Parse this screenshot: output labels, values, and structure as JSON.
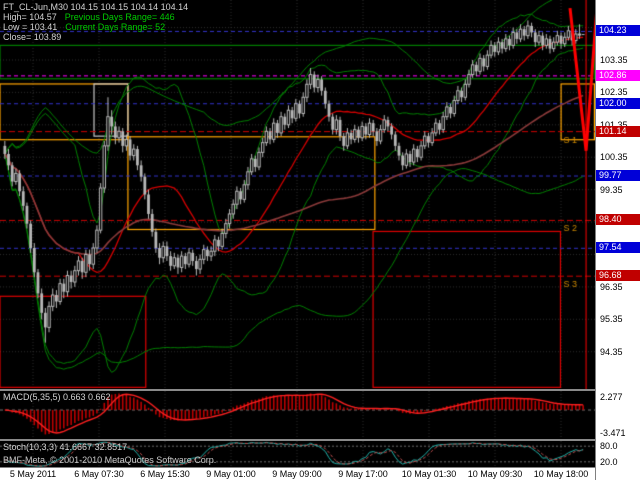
{
  "header": {
    "symbol_line": "FT_CL-Jun,M30 104.15 104.15 104.14 104.14",
    "high_line": "High= 104.57",
    "prev_range": "Previous Days Range= 446",
    "low_line": "Low = 103.41",
    "curr_range": "Current Days Range= 52",
    "close_line": "Close= 103.89"
  },
  "footer": {
    "copyright": "BMF-Meta, © 2001-2010 MetaQuotes Software Corp."
  },
  "colors": {
    "background": "#000000",
    "axis_bg": "#FFFFFF",
    "grid": "#2E2E2E",
    "candle": "#B8B8B8",
    "bollinger": "#008000",
    "ma_fast": "#D40000",
    "ma_slow": "#8B3A3A",
    "zone_green": "#008000",
    "zone_orange": "#FFA500",
    "zone_red": "#E00000",
    "zone_white": "#C8C8C8",
    "pivot_red": "#D00000",
    "blue_level": "#3333CC",
    "magenta_level": "#FF00FF",
    "macd_hist": "#C00000",
    "macd_signal": "#FF2020",
    "stoch_k": "#20B2AA",
    "stoch_d": "#C05050",
    "level_line": "#707070",
    "spike": "#FF0000",
    "pivot_label": "#CC8800",
    "badge_blue": "#0000D8",
    "badge_magenta": "#FF00FF",
    "badge_red": "#C00000"
  },
  "price_axis": {
    "ticks": [
      {
        "label": "103.35",
        "price": 103.35
      },
      {
        "label": "102.35",
        "price": 102.35
      },
      {
        "label": "101.35",
        "price": 101.35
      },
      {
        "label": "100.35",
        "price": 100.35
      },
      {
        "label": "99.35",
        "price": 99.35
      },
      {
        "label": "96.35",
        "price": 96.35
      },
      {
        "label": "95.35",
        "price": 95.35
      },
      {
        "label": "94.35",
        "price": 94.35
      }
    ],
    "badges": [
      {
        "label": "104.23",
        "price": 104.23,
        "color": "#0000D8"
      },
      {
        "label": "102.86",
        "price": 102.86,
        "color": "#FF00FF"
      },
      {
        "label": "102.00",
        "price": 102.0,
        "color": "#0000D8"
      },
      {
        "label": "101.14",
        "price": 101.14,
        "color": "#C00000"
      },
      {
        "label": "99.77",
        "price": 99.77,
        "color": "#0000D8"
      },
      {
        "label": "98.40",
        "price": 98.4,
        "color": "#C00000"
      },
      {
        "label": "97.54",
        "price": 97.54,
        "color": "#0000D8"
      },
      {
        "label": "96.68",
        "price": 96.68,
        "color": "#C00000"
      }
    ]
  },
  "indicators": {
    "macd": {
      "label": "MACD(5,35,5) 0.663 0.662",
      "fast": 5,
      "slow": 35,
      "signal": 5,
      "axis_max": "2.277",
      "axis_min": "-3.471",
      "range": [
        -3.471,
        2.277
      ]
    },
    "stoch": {
      "label": "Stoch(10,3,3) 41.6667 32.8517",
      "k": 10,
      "d": 3,
      "slowing": 3,
      "levels": [
        80,
        20
      ],
      "axis_labels": [
        "80.0",
        "20.0"
      ]
    }
  },
  "chart_data": {
    "type": "candlestick",
    "symbol": "FT_CL-Jun",
    "timeframe": "M30",
    "ylim": [
      93.2,
      105.2
    ],
    "x_labels": [
      "5 May 2011",
      "6 May 07:30",
      "6 May 15:30",
      "9 May 01:00",
      "9 May 09:00",
      "9 May 17:00",
      "10 May 01:30",
      "10 May 09:30",
      "10 May 18:00"
    ],
    "pivot_lines": [
      {
        "name": "S 1",
        "price": 101.14,
        "color": "#D00000"
      },
      {
        "name": "S 2",
        "price": 98.4,
        "color": "#D00000"
      },
      {
        "name": "S 3",
        "price": 96.68,
        "color": "#D00000"
      }
    ],
    "level_lines": [
      {
        "price": 104.23,
        "color": "#3333CC"
      },
      {
        "price": 102.86,
        "color": "#FF00FF"
      },
      {
        "price": 102.0,
        "color": "#3333CC"
      },
      {
        "price": 99.77,
        "color": "#3333CC"
      },
      {
        "price": 97.54,
        "color": "#3333CC"
      }
    ],
    "zones": [
      {
        "x0": 0.0,
        "x1": 0.999,
        "top": 103.8,
        "bottom": 102.77,
        "color": "#008000"
      },
      {
        "x0": 0.0,
        "x1": 0.215,
        "top": 102.61,
        "bottom": 100.89,
        "color": "#FFA500"
      },
      {
        "x0": 0.158,
        "x1": 0.215,
        "top": 102.61,
        "bottom": 101.0,
        "color": "#C8C8C8"
      },
      {
        "x0": 0.215,
        "x1": 0.63,
        "top": 100.98,
        "bottom": 98.12,
        "color": "#FFA500"
      },
      {
        "x0": 0.943,
        "x1": 0.999,
        "top": 102.61,
        "bottom": 100.89,
        "color": "#FFA500"
      },
      {
        "x0": 0.0,
        "x1": 0.245,
        "top": 96.06,
        "bottom": 93.25,
        "color": "#E00000"
      },
      {
        "x0": 0.627,
        "x1": 0.942,
        "top": 98.06,
        "bottom": 93.25,
        "color": "#E00000"
      }
    ],
    "spike": {
      "color": "#FF0000",
      "vline_x": 0.985,
      "polyline": [
        [
          0.958,
          104.95
        ],
        [
          0.985,
          100.55
        ],
        [
          1.004,
          105.15
        ]
      ]
    },
    "candles": [
      [
        100.7,
        100.85,
        100.3,
        100.45
      ],
      [
        100.45,
        100.6,
        99.95,
        100.1
      ],
      [
        100.1,
        100.2,
        99.45,
        99.6
      ],
      [
        99.6,
        100.0,
        99.5,
        99.85
      ],
      [
        99.85,
        99.95,
        99.15,
        99.3
      ],
      [
        99.3,
        99.45,
        98.7,
        98.85
      ],
      [
        98.85,
        98.95,
        98.15,
        98.3
      ],
      [
        98.3,
        98.4,
        97.4,
        97.55
      ],
      [
        97.55,
        97.7,
        96.65,
        96.8
      ],
      [
        96.8,
        96.9,
        96.0,
        96.15
      ],
      [
        96.15,
        96.3,
        95.35,
        95.55
      ],
      [
        95.55,
        95.7,
        94.63,
        95.1
      ],
      [
        95.1,
        95.9,
        94.95,
        95.75
      ],
      [
        95.75,
        96.3,
        95.6,
        96.1
      ],
      [
        96.1,
        96.25,
        95.7,
        95.9
      ],
      [
        95.9,
        96.6,
        95.8,
        96.45
      ],
      [
        96.45,
        96.6,
        96.0,
        96.2
      ],
      [
        96.2,
        96.85,
        96.05,
        96.7
      ],
      [
        96.7,
        96.85,
        96.3,
        96.5
      ],
      [
        96.5,
        97.0,
        96.35,
        96.85
      ],
      [
        96.85,
        97.3,
        96.7,
        97.15
      ],
      [
        97.15,
        97.25,
        96.6,
        96.8
      ],
      [
        96.8,
        97.5,
        96.65,
        97.35
      ],
      [
        97.35,
        97.5,
        96.85,
        97.05
      ],
      [
        97.05,
        97.7,
        96.9,
        97.55
      ],
      [
        97.55,
        98.25,
        97.4,
        98.1
      ],
      [
        98.1,
        99.55,
        98.0,
        99.4
      ],
      [
        99.4,
        100.85,
        99.25,
        100.7
      ],
      [
        100.7,
        102.2,
        100.55,
        101.6
      ],
      [
        101.6,
        101.8,
        101.05,
        101.3
      ],
      [
        101.3,
        101.45,
        100.75,
        100.95
      ],
      [
        100.95,
        101.3,
        100.8,
        101.15
      ],
      [
        101.15,
        101.25,
        100.5,
        100.7
      ],
      [
        100.7,
        101.05,
        100.55,
        100.9
      ],
      [
        100.9,
        101.0,
        100.25,
        100.4
      ],
      [
        100.4,
        100.75,
        100.25,
        100.6
      ],
      [
        100.6,
        100.7,
        99.95,
        100.1
      ],
      [
        100.1,
        100.25,
        99.6,
        99.75
      ],
      [
        99.75,
        99.85,
        99.05,
        99.2
      ],
      [
        99.2,
        99.35,
        98.45,
        98.6
      ],
      [
        98.6,
        98.75,
        97.9,
        98.05
      ],
      [
        98.05,
        98.15,
        97.4,
        97.55
      ],
      [
        97.55,
        97.7,
        97.05,
        97.25
      ],
      [
        97.25,
        97.75,
        97.1,
        97.6
      ],
      [
        97.6,
        97.75,
        97.15,
        97.3
      ],
      [
        97.3,
        97.45,
        96.85,
        97.0
      ],
      [
        97.0,
        97.4,
        96.9,
        97.25
      ],
      [
        97.25,
        97.35,
        96.75,
        96.95
      ],
      [
        96.95,
        97.45,
        96.8,
        97.3
      ],
      [
        97.3,
        97.4,
        96.9,
        97.05
      ],
      [
        97.05,
        97.55,
        96.95,
        97.4
      ],
      [
        97.4,
        97.5,
        97.0,
        97.15
      ],
      [
        97.15,
        97.3,
        96.7,
        96.9
      ],
      [
        96.9,
        97.35,
        96.75,
        97.2
      ],
      [
        97.2,
        97.65,
        97.05,
        97.5
      ],
      [
        97.5,
        97.6,
        97.15,
        97.3
      ],
      [
        97.3,
        97.6,
        97.15,
        97.45
      ],
      [
        97.45,
        97.95,
        97.3,
        97.8
      ],
      [
        97.8,
        97.9,
        97.45,
        97.6
      ],
      [
        97.6,
        98.15,
        97.5,
        98.0
      ],
      [
        98.0,
        98.45,
        97.85,
        98.3
      ],
      [
        98.3,
        98.75,
        98.15,
        98.6
      ],
      [
        98.6,
        99.05,
        98.45,
        98.9
      ],
      [
        98.9,
        99.45,
        98.75,
        99.3
      ],
      [
        99.3,
        99.4,
        98.9,
        99.05
      ],
      [
        99.05,
        99.65,
        98.95,
        99.5
      ],
      [
        99.5,
        100.05,
        99.35,
        99.9
      ],
      [
        99.9,
        100.45,
        99.8,
        100.3
      ],
      [
        100.3,
        100.4,
        99.9,
        100.05
      ],
      [
        100.05,
        100.65,
        99.95,
        100.5
      ],
      [
        100.5,
        100.95,
        100.35,
        100.8
      ],
      [
        100.8,
        101.3,
        100.7,
        101.15
      ],
      [
        101.15,
        101.25,
        100.75,
        100.9
      ],
      [
        100.9,
        101.55,
        100.8,
        101.4
      ],
      [
        101.4,
        101.5,
        100.95,
        101.1
      ],
      [
        101.1,
        101.75,
        101.0,
        101.6
      ],
      [
        101.6,
        101.7,
        101.2,
        101.35
      ],
      [
        101.35,
        101.95,
        101.25,
        101.8
      ],
      [
        101.8,
        101.9,
        101.4,
        101.55
      ],
      [
        101.55,
        102.15,
        101.45,
        102.0
      ],
      [
        102.0,
        102.1,
        101.55,
        101.7
      ],
      [
        101.7,
        102.35,
        101.6,
        102.2
      ],
      [
        102.2,
        102.75,
        102.05,
        102.6
      ],
      [
        102.6,
        103.1,
        102.45,
        102.9
      ],
      [
        102.9,
        103.0,
        102.35,
        102.5
      ],
      [
        102.5,
        102.9,
        102.35,
        102.75
      ],
      [
        102.75,
        102.85,
        102.25,
        102.4
      ],
      [
        102.4,
        102.5,
        101.85,
        102.0
      ],
      [
        102.0,
        102.1,
        101.45,
        101.6
      ],
      [
        101.6,
        101.7,
        101.05,
        101.2
      ],
      [
        101.2,
        101.65,
        101.05,
        101.5
      ],
      [
        101.5,
        101.6,
        100.85,
        101.0
      ],
      [
        101.0,
        101.1,
        100.55,
        100.7
      ],
      [
        100.7,
        101.25,
        100.6,
        101.1
      ],
      [
        101.1,
        101.2,
        100.75,
        100.9
      ],
      [
        100.9,
        101.35,
        100.8,
        101.2
      ],
      [
        101.2,
        101.3,
        100.8,
        100.95
      ],
      [
        100.95,
        101.45,
        100.85,
        101.3
      ],
      [
        101.3,
        101.4,
        100.9,
        101.05
      ],
      [
        101.05,
        101.55,
        100.95,
        101.4
      ],
      [
        101.4,
        101.5,
        101.0,
        101.15
      ],
      [
        101.15,
        101.25,
        100.7,
        100.85
      ],
      [
        100.85,
        101.35,
        100.75,
        101.2
      ],
      [
        101.2,
        101.65,
        101.1,
        101.5
      ],
      [
        101.5,
        101.6,
        101.15,
        101.3
      ],
      [
        101.3,
        101.4,
        100.9,
        101.05
      ],
      [
        101.05,
        101.15,
        100.55,
        100.7
      ],
      [
        100.7,
        100.8,
        100.25,
        100.4
      ],
      [
        100.4,
        100.5,
        99.95,
        100.1
      ],
      [
        100.1,
        100.6,
        100.0,
        100.45
      ],
      [
        100.45,
        100.55,
        100.05,
        100.2
      ],
      [
        100.2,
        100.75,
        100.1,
        100.6
      ],
      [
        100.6,
        100.7,
        100.2,
        100.35
      ],
      [
        100.35,
        100.85,
        100.25,
        100.7
      ],
      [
        100.7,
        101.15,
        100.6,
        101.0
      ],
      [
        101.0,
        101.1,
        100.65,
        100.8
      ],
      [
        100.8,
        101.25,
        100.7,
        101.1
      ],
      [
        101.1,
        101.55,
        101.0,
        101.4
      ],
      [
        101.4,
        101.5,
        101.05,
        101.2
      ],
      [
        101.2,
        101.75,
        101.1,
        101.6
      ],
      [
        101.6,
        102.05,
        101.5,
        101.9
      ],
      [
        101.9,
        102.0,
        101.55,
        101.7
      ],
      [
        101.7,
        102.25,
        101.6,
        102.1
      ],
      [
        102.1,
        102.55,
        102.0,
        102.4
      ],
      [
        102.4,
        102.5,
        102.05,
        102.2
      ],
      [
        102.2,
        102.75,
        102.1,
        102.6
      ],
      [
        102.6,
        103.05,
        102.5,
        102.9
      ],
      [
        102.9,
        103.35,
        102.8,
        103.2
      ],
      [
        103.2,
        103.3,
        102.85,
        103.0
      ],
      [
        103.0,
        103.55,
        102.9,
        103.4
      ],
      [
        103.4,
        103.5,
        103.0,
        103.15
      ],
      [
        103.15,
        103.65,
        103.05,
        103.5
      ],
      [
        103.5,
        103.95,
        103.4,
        103.8
      ],
      [
        103.8,
        103.9,
        103.45,
        103.6
      ],
      [
        103.6,
        104.05,
        103.5,
        103.9
      ],
      [
        103.9,
        104.0,
        103.55,
        103.7
      ],
      [
        103.7,
        104.15,
        103.6,
        104.0
      ],
      [
        104.0,
        104.1,
        103.65,
        103.8
      ],
      [
        103.8,
        104.35,
        103.7,
        104.2
      ],
      [
        104.2,
        104.3,
        103.85,
        104.0
      ],
      [
        104.0,
        104.45,
        103.9,
        104.3
      ],
      [
        104.3,
        104.4,
        103.95,
        104.1
      ],
      [
        104.1,
        104.57,
        104.0,
        104.4
      ],
      [
        104.4,
        104.5,
        104.05,
        104.2
      ],
      [
        104.2,
        104.3,
        103.75,
        103.9
      ],
      [
        103.9,
        104.25,
        103.8,
        104.1
      ],
      [
        104.1,
        104.2,
        103.65,
        103.8
      ],
      [
        103.8,
        104.15,
        103.7,
        104.0
      ],
      [
        104.0,
        104.1,
        103.55,
        103.7
      ],
      [
        103.7,
        104.05,
        103.6,
        103.9
      ],
      [
        103.9,
        104.25,
        103.8,
        104.1
      ],
      [
        104.1,
        104.2,
        103.7,
        103.85
      ],
      [
        103.85,
        104.2,
        103.75,
        104.05
      ],
      [
        104.05,
        104.4,
        103.95,
        104.25
      ],
      [
        104.25,
        104.35,
        103.8,
        103.95
      ],
      [
        103.95,
        104.3,
        103.85,
        104.15
      ],
      [
        104.15,
        104.45,
        104.0,
        104.15
      ],
      [
        104.15,
        104.15,
        104.14,
        104.14
      ]
    ]
  }
}
